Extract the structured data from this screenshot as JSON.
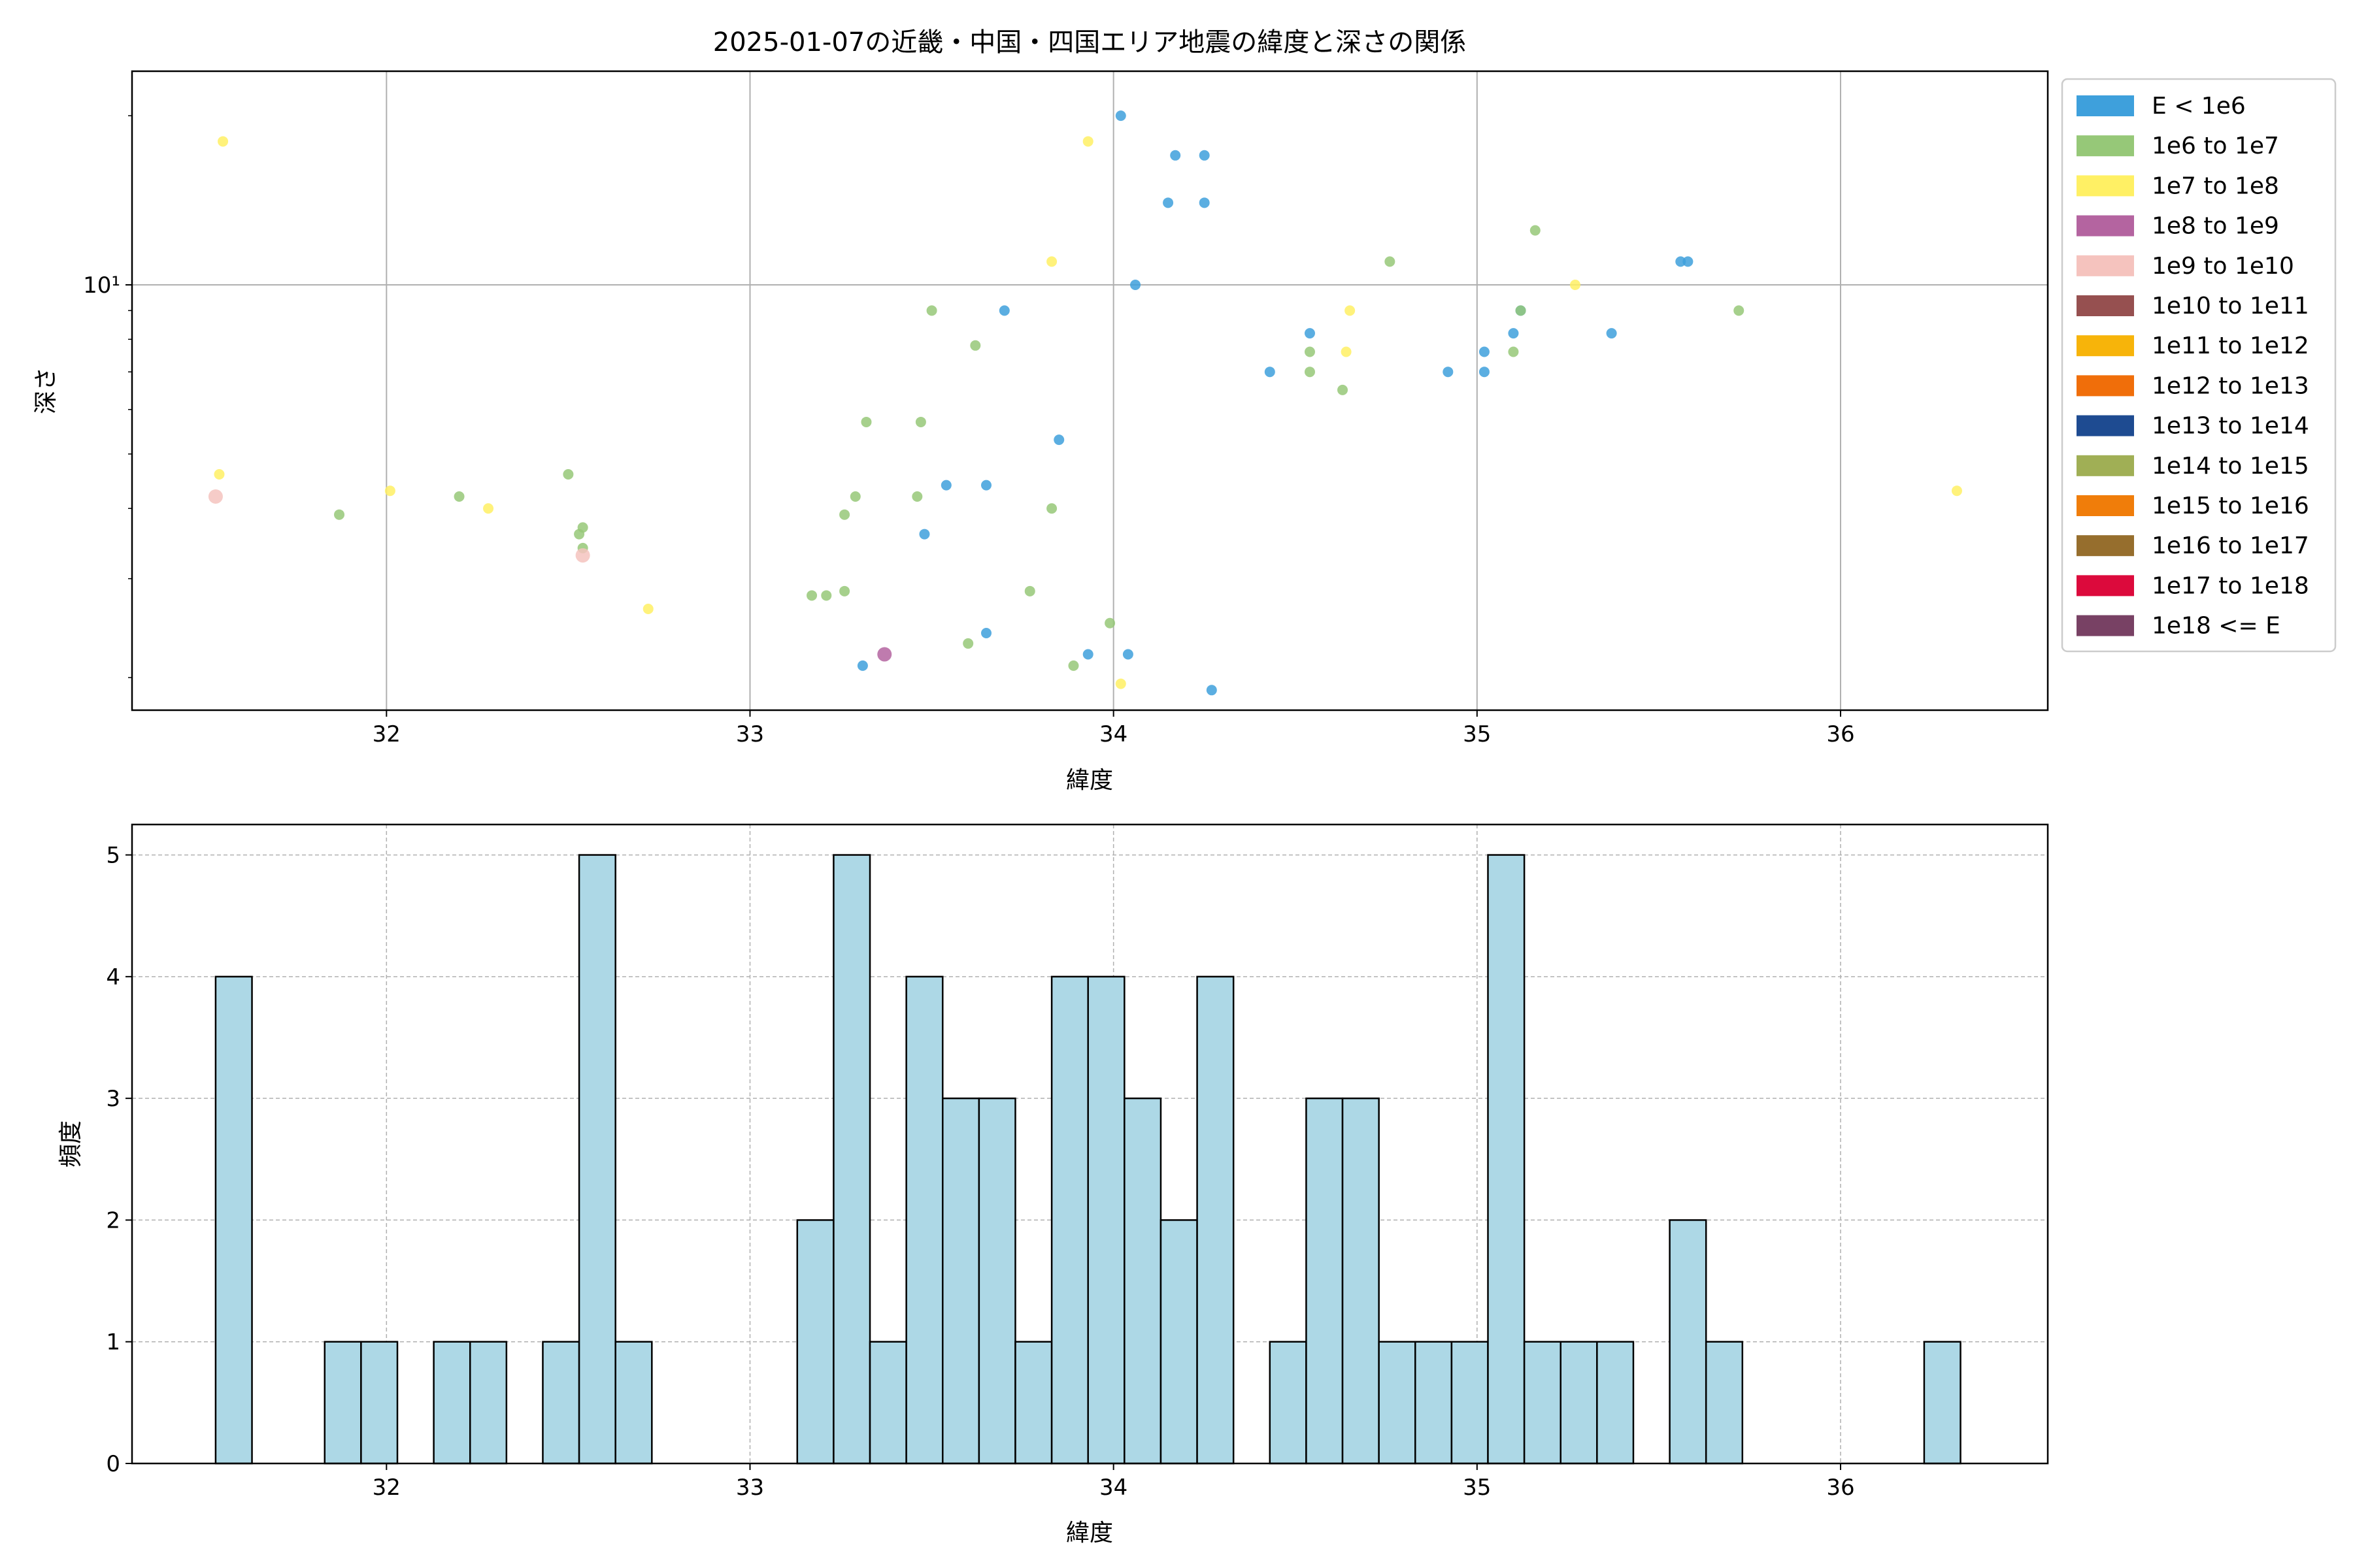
{
  "chart_data": [
    {
      "type": "scatter",
      "title": "2025-01-07の近畿・中国・四国エリア地震の緯度と深さの関係",
      "xlabel": "緯度",
      "ylabel": "深さ",
      "yscale": "log",
      "xlim": [
        31.3,
        36.57
      ],
      "ylim": [
        1.75,
        24
      ],
      "xticks": [
        32,
        33,
        34,
        35,
        36
      ],
      "yticks": [
        10
      ],
      "ytick_labels": [
        "10¹"
      ],
      "grid": true,
      "legend_position": "outside-right",
      "legend": [
        {
          "label": "E < 1e6",
          "color": "#3ea0dc"
        },
        {
          "label": "1e6 to 1e7",
          "color": "#96c878"
        },
        {
          "label": "1e7 to 1e8",
          "color": "#fff064"
        },
        {
          "label": "1e8 to 1e9",
          "color": "#b464a0"
        },
        {
          "label": "1e9 to 1e10",
          "color": "#f5c3be"
        },
        {
          "label": "1e10 to 1e11",
          "color": "#965050"
        },
        {
          "label": "1e11 to 1e12",
          "color": "#f7b40a"
        },
        {
          "label": "1e12 to 1e13",
          "color": "#f06e0a"
        },
        {
          "label": "1e13 to 1e14",
          "color": "#1e4b91"
        },
        {
          "label": "1e14 to 1e15",
          "color": "#a0af55"
        },
        {
          "label": "1e15 to 1e16",
          "color": "#f07d0a"
        },
        {
          "label": "1e16 to 1e17",
          "color": "#966e2d"
        },
        {
          "label": "1e17 to 1e18",
          "color": "#dc0a3c"
        },
        {
          "label": "1e18 <= E",
          "color": "#784164"
        }
      ],
      "series": [
        {
          "name": "E < 1e6",
          "color": "#3ea0dc",
          "points": [
            [
              34.02,
              20.0
            ],
            [
              34.17,
              17.0
            ],
            [
              34.25,
              17.0
            ],
            [
              34.15,
              14.0
            ],
            [
              34.25,
              14.0
            ],
            [
              34.06,
              10.0
            ],
            [
              33.7,
              9.0
            ],
            [
              33.85,
              5.3
            ],
            [
              33.54,
              4.4
            ],
            [
              33.65,
              4.4
            ],
            [
              33.48,
              3.6
            ],
            [
              34.43,
              7.0
            ],
            [
              34.54,
              8.2
            ],
            [
              34.92,
              7.0
            ],
            [
              35.02,
              7.6
            ],
            [
              35.02,
              7.0
            ],
            [
              35.1,
              8.2
            ],
            [
              35.12,
              9.0
            ],
            [
              35.37,
              8.2
            ],
            [
              35.56,
              11.0
            ],
            [
              35.58,
              11.0
            ],
            [
              33.65,
              2.4
            ],
            [
              33.93,
              2.2
            ],
            [
              34.04,
              2.2
            ],
            [
              33.31,
              2.1
            ],
            [
              34.27,
              1.9
            ]
          ]
        },
        {
          "name": "1e6 to 1e7",
          "color": "#96c878",
          "points": [
            [
              31.87,
              3.9
            ],
            [
              32.2,
              4.2
            ],
            [
              32.5,
              4.6
            ],
            [
              32.53,
              3.6
            ],
            [
              32.54,
              3.7
            ],
            [
              32.54,
              3.4
            ],
            [
              33.17,
              2.8
            ],
            [
              33.21,
              2.8
            ],
            [
              33.26,
              2.85
            ],
            [
              33.26,
              3.9
            ],
            [
              33.29,
              4.2
            ],
            [
              33.32,
              5.7
            ],
            [
              33.46,
              4.2
            ],
            [
              33.47,
              5.7
            ],
            [
              33.5,
              9.0
            ],
            [
              33.6,
              2.3
            ],
            [
              33.62,
              7.8
            ],
            [
              33.77,
              2.85
            ],
            [
              33.83,
              4.0
            ],
            [
              33.89,
              2.1
            ],
            [
              33.99,
              2.5
            ],
            [
              34.54,
              7.0
            ],
            [
              34.54,
              7.6
            ],
            [
              34.63,
              6.5
            ],
            [
              34.76,
              11.0
            ],
            [
              35.1,
              7.6
            ],
            [
              35.12,
              9.0
            ],
            [
              35.16,
              12.5
            ],
            [
              35.72,
              9.0
            ]
          ]
        },
        {
          "name": "1e7 to 1e8",
          "color": "#fff064",
          "points": [
            [
              31.55,
              18.0
            ],
            [
              31.54,
              4.6
            ],
            [
              32.01,
              4.3
            ],
            [
              32.28,
              4.0
            ],
            [
              32.72,
              2.65
            ],
            [
              33.83,
              11.0
            ],
            [
              33.93,
              18.0
            ],
            [
              34.02,
              1.95
            ],
            [
              34.64,
              7.6
            ],
            [
              34.65,
              9.0
            ],
            [
              35.27,
              10.0
            ],
            [
              36.32,
              4.3
            ]
          ]
        },
        {
          "name": "1e8 to 1e9",
          "color": "#b464a0",
          "points": [
            [
              33.37,
              2.2
            ]
          ]
        },
        {
          "name": "1e9 to 1e10",
          "color": "#f5c3be",
          "points": [
            [
              31.53,
              4.2
            ],
            [
              32.54,
              3.3
            ]
          ]
        }
      ]
    },
    {
      "type": "bar",
      "subtype": "histogram",
      "xlabel": "緯度",
      "ylabel": "頻度",
      "xlim": [
        31.3,
        36.57
      ],
      "ylim": [
        0,
        5.25
      ],
      "xticks": [
        32,
        33,
        34,
        35,
        36
      ],
      "yticks": [
        0,
        1,
        2,
        3,
        4,
        5
      ],
      "grid": true,
      "bar_color": "#add8e6",
      "edge_color": "#000000",
      "bin_start": 31.53,
      "bin_width": 0.1,
      "values": [
        4,
        0,
        0,
        1,
        1,
        0,
        1,
        1,
        0,
        1,
        5,
        1,
        0,
        0,
        0,
        0,
        2,
        5,
        1,
        4,
        3,
        3,
        1,
        4,
        4,
        3,
        2,
        4,
        0,
        1,
        3,
        3,
        1,
        1,
        1,
        5,
        1,
        1,
        1,
        0,
        2,
        1,
        0,
        0,
        0,
        0,
        0,
        1
      ]
    }
  ]
}
